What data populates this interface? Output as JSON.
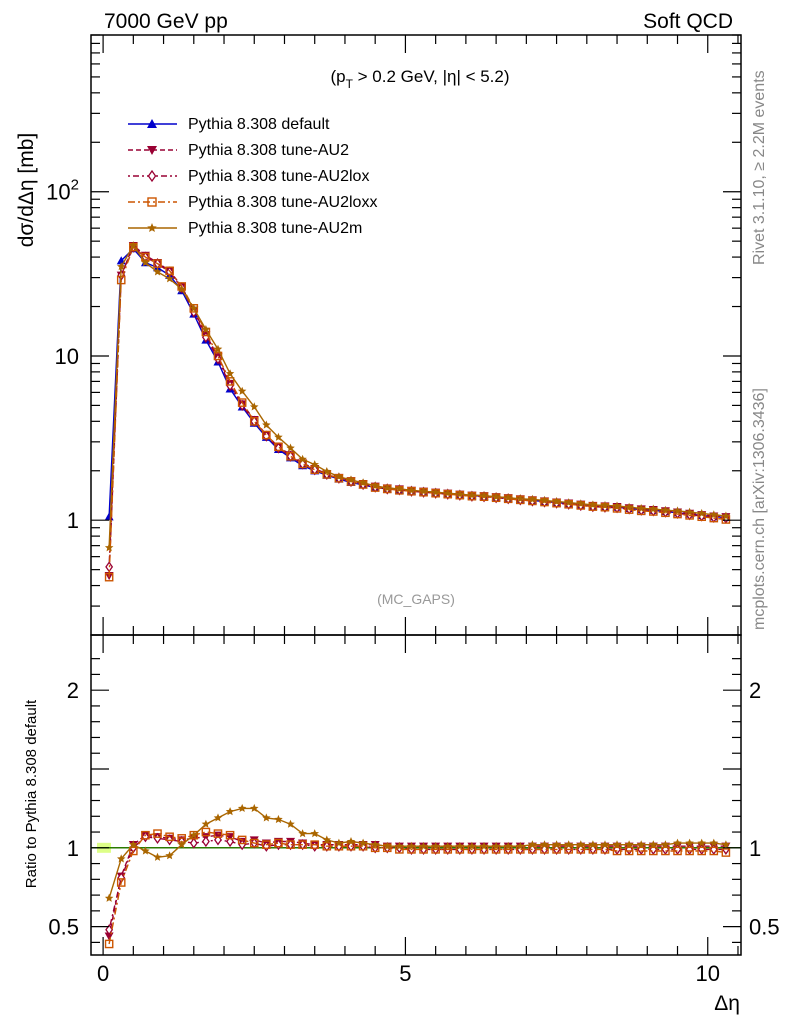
{
  "header": {
    "left": "7000 GeV pp",
    "right": "Soft QCD"
  },
  "annotation": {
    "pre": "(p",
    "sub": "T",
    "post": " > 0.2 GeV, |η| < 5.2)"
  },
  "side_text": {
    "rivet": "Rivet 3.1.10, ≥ 2.2M events",
    "mcplots": "mcplots.cern.ch [arXiv:1306.3436]"
  },
  "analysis_tag": "(MC_GAPS)",
  "chart_data": [
    {
      "type": "line",
      "panel": "main",
      "ylabel": "dσ/dΔη [mb]",
      "yscale": "log",
      "ylim": [
        0.2,
        900
      ],
      "xlim": [
        -0.2,
        10.55
      ],
      "yticks": [
        1,
        10,
        100
      ],
      "ytick_labels": [
        "1",
        "10",
        "10^2"
      ],
      "grid": false,
      "legend_position": "top-left",
      "x": [
        0.1,
        0.3,
        0.5,
        0.7,
        0.9,
        1.1,
        1.3,
        1.5,
        1.7,
        1.9,
        2.1,
        2.3,
        2.5,
        2.7,
        2.9,
        3.1,
        3.3,
        3.5,
        3.7,
        3.9,
        4.1,
        4.3,
        4.5,
        4.7,
        4.9,
        5.1,
        5.3,
        5.5,
        5.7,
        5.9,
        6.1,
        6.3,
        6.5,
        6.7,
        6.9,
        7.1,
        7.3,
        7.5,
        7.7,
        7.9,
        8.1,
        8.3,
        8.5,
        8.7,
        8.9,
        9.1,
        9.3,
        9.5,
        9.7,
        9.9,
        10.1,
        10.3
      ],
      "series": [
        {
          "name": "Pythia 8.308 default",
          "color": "#0000cc",
          "dash": "",
          "marker": "triangle-up",
          "values": [
            1.05,
            38,
            45,
            37,
            34.5,
            31,
            25,
            18,
            12.5,
            9.2,
            6.3,
            4.9,
            3.9,
            3.2,
            2.7,
            2.4,
            2.15,
            2.0,
            1.88,
            1.78,
            1.7,
            1.64,
            1.58,
            1.55,
            1.53,
            1.51,
            1.49,
            1.47,
            1.45,
            1.43,
            1.41,
            1.4,
            1.38,
            1.36,
            1.34,
            1.32,
            1.3,
            1.28,
            1.26,
            1.24,
            1.22,
            1.21,
            1.2,
            1.18,
            1.16,
            1.15,
            1.13,
            1.11,
            1.09,
            1.07,
            1.05,
            1.04
          ]
        },
        {
          "name": "Pythia 8.308 tune-AU2",
          "color": "#990033",
          "dash": "5,3",
          "marker": "triangle-down",
          "values": [
            0.46,
            31,
            47,
            41,
            37,
            33,
            26.5,
            19,
            13.5,
            9.9,
            6.8,
            5.1,
            4.1,
            3.3,
            2.8,
            2.5,
            2.23,
            2.06,
            1.92,
            1.82,
            1.74,
            1.67,
            1.61,
            1.57,
            1.55,
            1.52,
            1.5,
            1.48,
            1.46,
            1.44,
            1.42,
            1.41,
            1.39,
            1.37,
            1.35,
            1.33,
            1.31,
            1.29,
            1.27,
            1.25,
            1.23,
            1.22,
            1.21,
            1.19,
            1.17,
            1.16,
            1.14,
            1.12,
            1.1,
            1.08,
            1.06,
            1.05
          ]
        },
        {
          "name": "Pythia 8.308 tune-AU2lox",
          "color": "#990033",
          "dash": "2,3,6,3",
          "marker": "diamond-open",
          "values": [
            0.52,
            31,
            46,
            40,
            36.5,
            32.5,
            26,
            18.5,
            13,
            9.6,
            6.6,
            5.0,
            4.0,
            3.25,
            2.75,
            2.45,
            2.2,
            2.03,
            1.9,
            1.8,
            1.72,
            1.65,
            1.59,
            1.55,
            1.53,
            1.5,
            1.48,
            1.46,
            1.44,
            1.42,
            1.4,
            1.39,
            1.37,
            1.35,
            1.33,
            1.31,
            1.29,
            1.27,
            1.25,
            1.23,
            1.21,
            1.2,
            1.19,
            1.17,
            1.15,
            1.14,
            1.12,
            1.1,
            1.08,
            1.06,
            1.04,
            1.03
          ]
        },
        {
          "name": "Pythia 8.308 tune-AU2loxx",
          "color": "#cc5500",
          "dash": "7,3,2,3",
          "marker": "square-open",
          "values": [
            0.45,
            29,
            46,
            40,
            36.5,
            33,
            26.5,
            19.5,
            14,
            10,
            7.0,
            5.2,
            4.0,
            3.3,
            2.8,
            2.45,
            2.2,
            2.03,
            1.9,
            1.8,
            1.72,
            1.65,
            1.58,
            1.55,
            1.52,
            1.5,
            1.48,
            1.46,
            1.44,
            1.42,
            1.4,
            1.39,
            1.37,
            1.35,
            1.33,
            1.31,
            1.29,
            1.27,
            1.25,
            1.23,
            1.21,
            1.2,
            1.18,
            1.16,
            1.14,
            1.13,
            1.11,
            1.09,
            1.07,
            1.05,
            1.03,
            1.01
          ]
        },
        {
          "name": "Pythia 8.308 tune-AU2m",
          "color": "#aa6600",
          "dash": "",
          "marker": "star",
          "values": [
            0.68,
            35,
            47,
            37,
            32.5,
            29.5,
            25.5,
            19.5,
            14.5,
            11,
            7.8,
            6.1,
            4.9,
            3.8,
            3.2,
            2.75,
            2.35,
            2.18,
            1.98,
            1.84,
            1.76,
            1.69,
            1.62,
            1.57,
            1.55,
            1.52,
            1.5,
            1.48,
            1.46,
            1.44,
            1.42,
            1.41,
            1.39,
            1.37,
            1.35,
            1.34,
            1.32,
            1.3,
            1.28,
            1.26,
            1.24,
            1.23,
            1.22,
            1.2,
            1.18,
            1.17,
            1.15,
            1.14,
            1.12,
            1.1,
            1.08,
            1.06
          ]
        }
      ]
    },
    {
      "type": "line",
      "panel": "ratio",
      "ylabel": "Ratio to Pythia 8.308 default",
      "xlabel": "Δη",
      "ylim": [
        0.32,
        2.35
      ],
      "xlim": [
        -0.2,
        10.55
      ],
      "xticks": [
        0,
        5,
        10
      ],
      "xtick_labels": [
        "0",
        "5",
        "10"
      ],
      "yticks": [
        0.5,
        1,
        2
      ],
      "ytick_labels": [
        "0.5",
        "1",
        "2"
      ],
      "reference_line": 1,
      "band_color": "#ddff88",
      "x": [
        0.1,
        0.3,
        0.5,
        0.7,
        0.9,
        1.1,
        1.3,
        1.5,
        1.7,
        1.9,
        2.1,
        2.3,
        2.5,
        2.7,
        2.9,
        3.1,
        3.3,
        3.5,
        3.7,
        3.9,
        4.1,
        4.3,
        4.5,
        4.7,
        4.9,
        5.1,
        5.3,
        5.5,
        5.7,
        5.9,
        6.1,
        6.3,
        6.5,
        6.7,
        6.9,
        7.1,
        7.3,
        7.5,
        7.7,
        7.9,
        8.1,
        8.3,
        8.5,
        8.7,
        8.9,
        9.1,
        9.3,
        9.5,
        9.7,
        9.9,
        10.1,
        10.3
      ],
      "series": [
        {
          "name": "Pythia 8.308 tune-AU2",
          "color": "#990033",
          "dash": "5,3",
          "marker": "triangle-down",
          "values": [
            0.44,
            0.82,
            1.02,
            1.08,
            1.07,
            1.06,
            1.05,
            1.06,
            1.07,
            1.08,
            1.07,
            1.04,
            1.05,
            1.03,
            1.04,
            1.04,
            1.03,
            1.02,
            1.02,
            1.02,
            1.02,
            1.02,
            1.02,
            1.01,
            1.01,
            1.01,
            1.01,
            1.01,
            1.01,
            1.01,
            1.01,
            1.01,
            1.01,
            1.01,
            1.01,
            1.01,
            1.01,
            1.01,
            1.01,
            1.01,
            1.01,
            1.01,
            1.01,
            1.01,
            1.01,
            1.01,
            1.01,
            1.01,
            1.01,
            1.01,
            1.01,
            1.01
          ]
        },
        {
          "name": "Pythia 8.308 tune-AU2lox",
          "color": "#990033",
          "dash": "2,3,6,3",
          "marker": "diamond-open",
          "values": [
            0.48,
            0.81,
            1.0,
            1.07,
            1.06,
            1.05,
            1.04,
            1.03,
            1.04,
            1.05,
            1.04,
            1.02,
            1.03,
            1.01,
            1.02,
            1.02,
            1.02,
            1.01,
            1.01,
            1.01,
            1.01,
            1.01,
            1.0,
            1.0,
            1.0,
            0.99,
            0.99,
            0.99,
            0.99,
            0.99,
            0.99,
            0.99,
            0.99,
            0.99,
            0.99,
            0.99,
            0.99,
            0.99,
            0.99,
            0.99,
            0.99,
            0.99,
            0.99,
            0.99,
            0.99,
            0.99,
            0.99,
            0.99,
            0.99,
            0.99,
            0.99,
            0.99
          ]
        },
        {
          "name": "Pythia 8.308 tune-AU2loxx",
          "color": "#cc5500",
          "dash": "7,3,2,3",
          "marker": "square-open",
          "values": [
            0.39,
            0.78,
            0.98,
            1.08,
            1.09,
            1.07,
            1.06,
            1.08,
            1.1,
            1.09,
            1.08,
            1.05,
            1.03,
            1.02,
            1.03,
            1.02,
            1.02,
            1.02,
            1.01,
            1.01,
            1.01,
            1.01,
            1.0,
            1.0,
            0.99,
            0.99,
            0.99,
            0.99,
            0.99,
            0.99,
            0.99,
            0.99,
            0.99,
            0.99,
            0.99,
            0.99,
            0.99,
            0.99,
            0.99,
            0.99,
            0.99,
            0.99,
            0.98,
            0.98,
            0.98,
            0.98,
            0.98,
            0.98,
            0.98,
            0.98,
            0.98,
            0.97
          ]
        },
        {
          "name": "Pythia 8.308 tune-AU2m",
          "color": "#aa6600",
          "dash": "",
          "marker": "star",
          "values": [
            0.68,
            0.93,
            1.02,
            0.98,
            0.94,
            0.95,
            1.02,
            1.08,
            1.15,
            1.19,
            1.23,
            1.25,
            1.25,
            1.19,
            1.18,
            1.15,
            1.09,
            1.09,
            1.05,
            1.03,
            1.04,
            1.03,
            1.02,
            1.01,
            1.01,
            1.01,
            1.01,
            1.01,
            1.01,
            1.01,
            1.01,
            1.01,
            1.01,
            1.01,
            1.01,
            1.02,
            1.02,
            1.02,
            1.02,
            1.02,
            1.02,
            1.02,
            1.02,
            1.02,
            1.02,
            1.02,
            1.02,
            1.03,
            1.03,
            1.03,
            1.03,
            1.02
          ]
        }
      ]
    }
  ]
}
